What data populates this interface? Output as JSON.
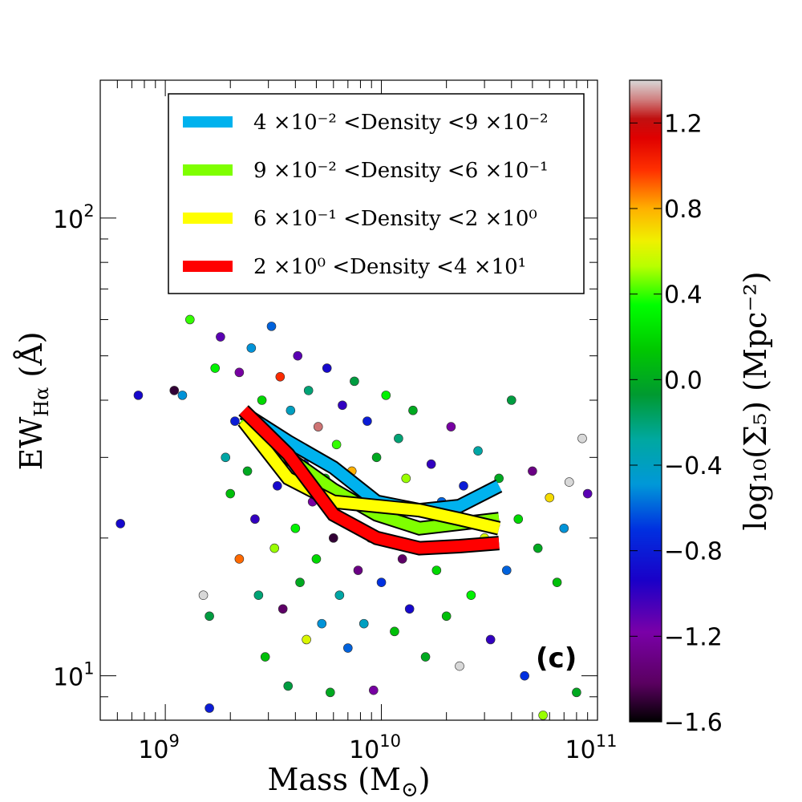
{
  "chart_data": {
    "type": "scatter",
    "panel_label": "(c)",
    "xlabel": "Mass",
    "xlabel_unit": "(M",
    "xlabel_unit_sub": "⊙",
    "xlabel_unit_close": ")",
    "xscale": "log",
    "xlim": [
      500000000.0,
      100000000000.0
    ],
    "ylabel": "EW",
    "ylabel_sub": "Hα",
    "ylabel_unit": "(Å)",
    "yscale": "log",
    "ylim": [
      8,
      200
    ],
    "x_ticks": [
      {
        "value": 1000000000.0,
        "base": "10",
        "exp": "9"
      },
      {
        "value": 10000000000.0,
        "base": "10",
        "exp": "10"
      },
      {
        "value": 100000000000.0,
        "base": "10",
        "exp": "11"
      }
    ],
    "y_ticks": [
      {
        "value": 10,
        "base": "10",
        "exp": "1"
      },
      {
        "value": 100,
        "base": "10",
        "exp": "2"
      }
    ],
    "colorbar": {
      "label": "log₁₀(Σ₅)  (Mpc⁻²)",
      "range": [
        -1.6,
        1.4
      ],
      "ticks": [
        "−1.6",
        "−1.2",
        "−0.8",
        "−0.4",
        "0.0",
        "0.4",
        "0.8",
        "1.2"
      ],
      "tick_values": [
        -1.6,
        -1.2,
        -0.8,
        -0.4,
        0.0,
        0.4,
        0.8,
        1.2
      ]
    },
    "legend": [
      {
        "label": "4 ×10⁻² <Density <9 ×10⁻²",
        "color": "#00b2ee"
      },
      {
        "label": "9 ×10⁻² <Density <6 ×10⁻¹",
        "color": "#7fff00"
      },
      {
        "label": "6 ×10⁻¹ <Density <2 ×10⁰",
        "color": "#ffff00"
      },
      {
        "label": "2 ×10⁰ <Density <4 ×10¹",
        "color": "#ff0000"
      }
    ],
    "series": [
      {
        "name": "4e-2 < Density < 9e-2",
        "color": "#00b2ee",
        "x": [
          2300000000.0,
          3700000000.0,
          6000000000.0,
          9500000000.0,
          15000000000.0,
          23000000000.0,
          35000000000.0
        ],
        "y": [
          37.5,
          32.5,
          28.5,
          24,
          23,
          23.5,
          26
        ]
      },
      {
        "name": "9e-2 < Density < 6e-1",
        "color": "#7fff00",
        "x": [
          2300000000.0,
          3700000000.0,
          6000000000.0,
          9500000000.0,
          15000000000.0,
          23000000000.0,
          35000000000.0
        ],
        "y": [
          36.5,
          30,
          25.5,
          22.5,
          21,
          21.5,
          22
        ]
      },
      {
        "name": "6e-1 < Density < 2e0",
        "color": "#ffff00",
        "x": [
          2300000000.0,
          3700000000.0,
          6000000000.0,
          9500000000.0,
          15000000000.0,
          23000000000.0,
          35000000000.0
        ],
        "y": [
          36,
          27,
          24,
          23.5,
          23,
          22,
          21
        ]
      },
      {
        "name": "2e0 < Density < 4e1",
        "color": "#ff0000",
        "x": [
          2300000000.0,
          3700000000.0,
          6000000000.0,
          9500000000.0,
          15000000000.0,
          23000000000.0,
          35000000000.0
        ],
        "y": [
          38,
          30.5,
          22.5,
          20,
          19,
          19.2,
          19.5
        ]
      }
    ],
    "scatter_points": [
      [
        620000000.0,
        21.5,
        -0.9
      ],
      [
        750000000.0,
        41,
        -0.9
      ],
      [
        1100000000.0,
        42,
        -1.5
      ],
      [
        1200000000.0,
        41,
        -0.5
      ],
      [
        1300000000.0,
        60,
        0.4
      ],
      [
        1500000000.0,
        15,
        1.4
      ],
      [
        1600000000.0,
        8.5,
        -0.8
      ],
      [
        1600000000.0,
        13.5,
        -0.1
      ],
      [
        1700000000.0,
        47,
        0.3
      ],
      [
        1800000000.0,
        55,
        -1.1
      ],
      [
        1900000000.0,
        30,
        -0.3
      ],
      [
        2000000000.0,
        25,
        0.1
      ],
      [
        2100000000.0,
        36,
        -0.8
      ],
      [
        2200000000.0,
        18,
        0.9
      ],
      [
        2200000000.0,
        46,
        -1.2
      ],
      [
        2400000000.0,
        28,
        0.0
      ],
      [
        2500000000.0,
        52,
        -0.5
      ],
      [
        2600000000.0,
        22,
        -1.0
      ],
      [
        2700000000.0,
        15,
        -0.2
      ],
      [
        2800000000.0,
        40,
        0.2
      ],
      [
        2900000000.0,
        11,
        0.1
      ],
      [
        3000000000.0,
        33,
        -1.3
      ],
      [
        3100000000.0,
        58,
        -0.6
      ],
      [
        3200000000.0,
        19,
        0.5
      ],
      [
        3300000000.0,
        26,
        -0.9
      ],
      [
        3400000000.0,
        45,
        1.0
      ],
      [
        3500000000.0,
        14,
        -1.4
      ],
      [
        3600000000.0,
        31,
        0.0
      ],
      [
        3700000000.0,
        9.5,
        -0.1
      ],
      [
        3800000000.0,
        38,
        -0.4
      ],
      [
        4000000000.0,
        21,
        0.3
      ],
      [
        4100000000.0,
        50,
        -1.1
      ],
      [
        4200000000.0,
        16,
        0.0
      ],
      [
        4400000000.0,
        29,
        -0.7
      ],
      [
        4500000000.0,
        12,
        0.6
      ],
      [
        4600000000.0,
        42,
        -0.2
      ],
      [
        4800000000.0,
        24,
        -1.2
      ],
      [
        5000000000.0,
        18,
        0.2
      ],
      [
        5100000000.0,
        35,
        1.3
      ],
      [
        5300000000.0,
        13,
        -0.5
      ],
      [
        5500000000.0,
        27,
        0.1
      ],
      [
        5600000000.0,
        47,
        -0.9
      ],
      [
        5800000000.0,
        9.2,
        0.0
      ],
      [
        6000000000.0,
        20,
        -1.5
      ],
      [
        6200000000.0,
        32,
        0.4
      ],
      [
        6400000000.0,
        15,
        -0.3
      ],
      [
        6600000000.0,
        39,
        -1.0
      ],
      [
        6800000000.0,
        22,
        0.0
      ],
      [
        7000000000.0,
        11.5,
        -0.6
      ],
      [
        7300000000.0,
        28,
        0.8
      ],
      [
        7500000000.0,
        44,
        -0.1
      ],
      [
        7800000000.0,
        17,
        -1.3
      ],
      [
        8000000000.0,
        25,
        0.1
      ],
      [
        8300000000.0,
        13,
        -0.4
      ],
      [
        8600000000.0,
        36,
        -0.8
      ],
      [
        8900000000.0,
        20,
        0.2
      ],
      [
        9200000000.0,
        9.3,
        -1.2
      ],
      [
        9500000000.0,
        30,
        0.0
      ],
      [
        10000000000.0,
        16,
        -0.7
      ],
      [
        10500000000.0,
        41,
        0.3
      ],
      [
        11000000000.0,
        23,
        -1.1
      ],
      [
        11500000000.0,
        12.5,
        0.1
      ],
      [
        12000000000.0,
        33,
        -0.2
      ],
      [
        12500000000.0,
        18,
        -1.4
      ],
      [
        13000000000.0,
        27,
        0.5
      ],
      [
        13500000000.0,
        14,
        -0.9
      ],
      [
        14000000000.0,
        38,
        0.0
      ],
      [
        15000000000.0,
        21,
        -0.5
      ],
      [
        16000000000.0,
        11,
        0.0
      ],
      [
        17000000000.0,
        29,
        -1.0
      ],
      [
        18000000000.0,
        17,
        0.2
      ],
      [
        19000000000.0,
        24,
        -0.6
      ],
      [
        20000000000.0,
        13.5,
        0.1
      ],
      [
        21000000000.0,
        35,
        -1.2
      ],
      [
        22000000000.0,
        19,
        0.0
      ],
      [
        23000000000.0,
        10.5,
        1.4
      ],
      [
        24000000000.0,
        26,
        -0.8
      ],
      [
        26000000000.0,
        15,
        0.3
      ],
      [
        28000000000.0,
        31,
        -0.3
      ],
      [
        30000000000.0,
        20,
        0.6
      ],
      [
        32000000000.0,
        12,
        -1.0
      ],
      [
        35000000000.0,
        27,
        0.0
      ],
      [
        38000000000.0,
        17,
        -0.6
      ],
      [
        40000000000.0,
        40,
        -0.1
      ],
      [
        43000000000.0,
        22,
        0.2
      ],
      [
        46000000000.0,
        10,
        -0.7
      ],
      [
        50000000000.0,
        28,
        -1.3
      ],
      [
        53000000000.0,
        19,
        0.0
      ],
      [
        56000000000.0,
        8.2,
        0.5
      ],
      [
        60000000000.0,
        24.5,
        0.7
      ],
      [
        65000000000.0,
        16,
        0.1
      ],
      [
        70000000000.0,
        21,
        -0.5
      ],
      [
        74000000000.0,
        26.5,
        1.4
      ],
      [
        80000000000.0,
        9.2,
        0.0
      ],
      [
        85000000000.0,
        33,
        1.4
      ],
      [
        90000000000.0,
        25,
        -1.1
      ]
    ]
  }
}
